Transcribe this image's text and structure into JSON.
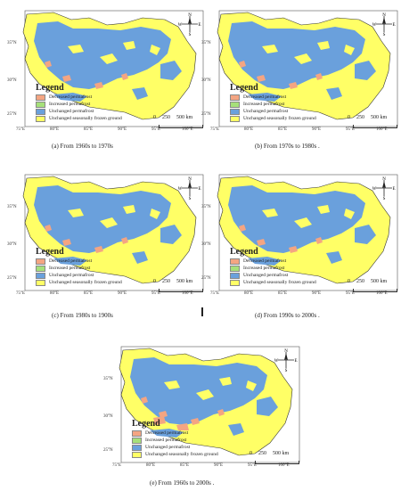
{
  "colors": {
    "decreased": "#f4a582",
    "increased": "#a6e07a",
    "unchanged_permafrost": "#6aa0dc",
    "seasonal": "#ffff66"
  },
  "icons": [
    "compass-rose-icon"
  ],
  "legend": {
    "title": "Legend",
    "items": [
      {
        "label": "Decreased permafrost",
        "color": "#f4a582"
      },
      {
        "label": "Increased permafrost",
        "color": "#a6e07a"
      },
      {
        "label": "Unchanged permafrost",
        "color": "#6aa0dc"
      },
      {
        "label": "Unchanged seasonally frozen ground",
        "color": "#ffff66"
      }
    ]
  },
  "scale": {
    "labels": [
      "0",
      "250",
      "500 km"
    ]
  },
  "compass": {
    "n": "N",
    "s": "S",
    "e": "E",
    "w": "W"
  },
  "axes": {
    "lat": [
      "35°N",
      "30°N",
      "25°N"
    ],
    "lon": [
      "75°E",
      "80°E",
      "85°E",
      "90°E",
      "95°E",
      "100°E"
    ]
  },
  "panels": [
    {
      "caption": "(a) From 1960s to 1970s"
    },
    {
      "caption": "(b) From 1970s to 1980s ."
    },
    {
      "caption": "(c) From 1980s to 1900s"
    },
    {
      "caption": "(d) From 1990s to 2000s ."
    },
    {
      "caption": "(e) From 1960s to 2000s ."
    }
  ]
}
